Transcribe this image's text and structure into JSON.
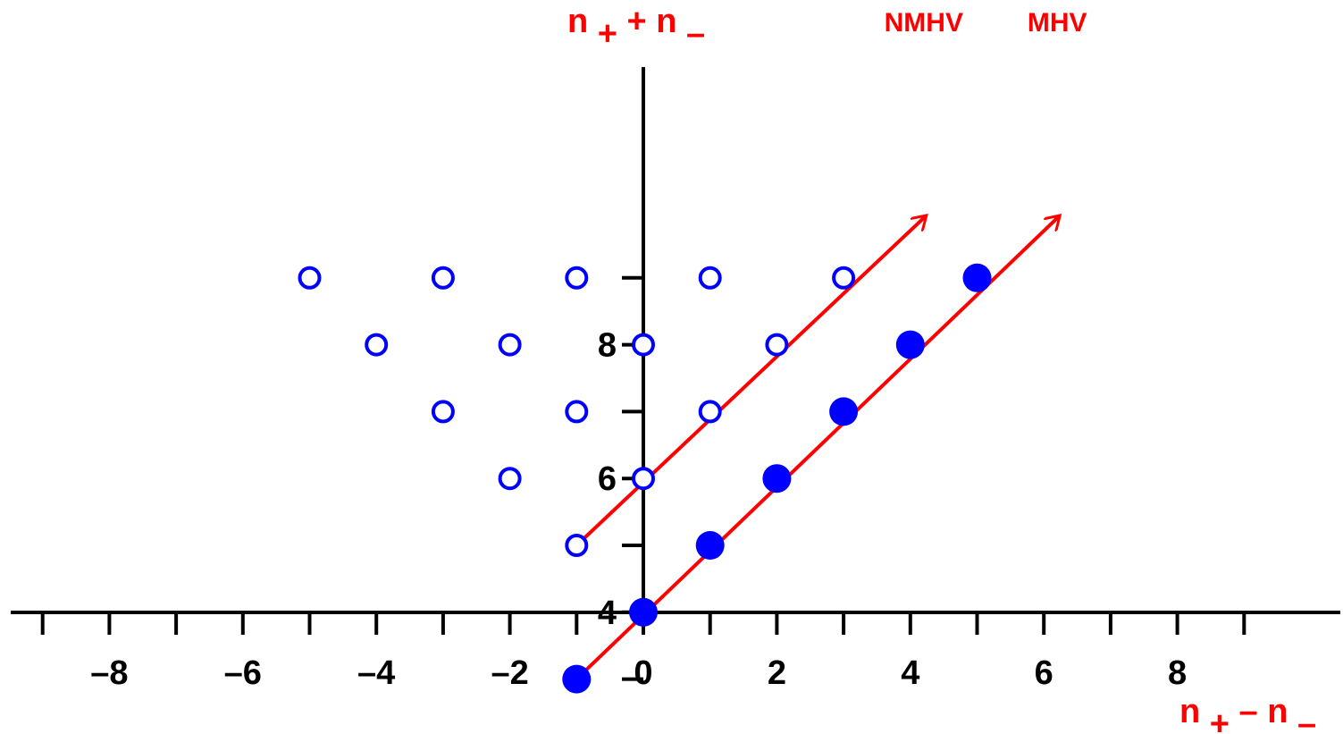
{
  "chart_data": {
    "type": "scatter",
    "x_axis": {
      "ticks": [
        -9,
        -8,
        -7,
        -6,
        -5,
        -4,
        -3,
        -2,
        -1,
        0,
        1,
        2,
        3,
        4,
        5,
        6,
        7,
        8,
        9
      ],
      "tick_labels": [
        {
          "value": -8,
          "text": "–8"
        },
        {
          "value": -6,
          "text": "–6"
        },
        {
          "value": -4,
          "text": "–4"
        },
        {
          "value": -2,
          "text": "–2"
        },
        {
          "value": 0,
          "text": "0"
        },
        {
          "value": 2,
          "text": "2"
        },
        {
          "value": 4,
          "text": "4"
        },
        {
          "value": 6,
          "text": "6"
        },
        {
          "value": 8,
          "text": "8"
        }
      ],
      "label": {
        "main": "n",
        "sub1": "+",
        "op": "–",
        "main2": "n",
        "sub2": "–"
      }
    },
    "y_axis": {
      "ticks": [
        3,
        4,
        5,
        6,
        7,
        8,
        9
      ],
      "tick_labels": [
        {
          "value": 4,
          "text": "4"
        },
        {
          "value": 6,
          "text": "6"
        },
        {
          "value": 8,
          "text": "8"
        }
      ],
      "label": {
        "main": "n",
        "sub1": "+",
        "op": "+",
        "main2": "n",
        "sub2": "–"
      }
    },
    "xlim": [
      -9.5,
      10.5
    ],
    "ylim": [
      2,
      10.2
    ],
    "grid": false,
    "series": [
      {
        "marker": "open-circle",
        "color": "#0000ff",
        "points": [
          [
            -5,
            9
          ],
          [
            -3,
            9
          ],
          [
            -1,
            9
          ],
          [
            1,
            9
          ],
          [
            3,
            9
          ],
          [
            -4,
            8
          ],
          [
            -2,
            8
          ],
          [
            0,
            8
          ],
          [
            2,
            8
          ],
          [
            -3,
            7
          ],
          [
            -1,
            7
          ],
          [
            1,
            7
          ],
          [
            -2,
            6
          ],
          [
            0,
            6
          ],
          [
            -1,
            5
          ]
        ]
      },
      {
        "marker": "filled-circle",
        "color": "#0000ff",
        "points": [
          [
            -1,
            3
          ],
          [
            0,
            4
          ],
          [
            1,
            5
          ],
          [
            2,
            6
          ],
          [
            3,
            7
          ],
          [
            4,
            8
          ],
          [
            5,
            9
          ]
        ]
      }
    ],
    "arrows": [
      {
        "name": "NMHV",
        "color": "#ff0000",
        "from": [
          -1,
          5
        ],
        "to": [
          4,
          10
        ]
      },
      {
        "name": "MHV",
        "color": "#ff0000",
        "from": [
          -1,
          3
        ],
        "to": [
          6,
          10
        ]
      }
    ]
  }
}
